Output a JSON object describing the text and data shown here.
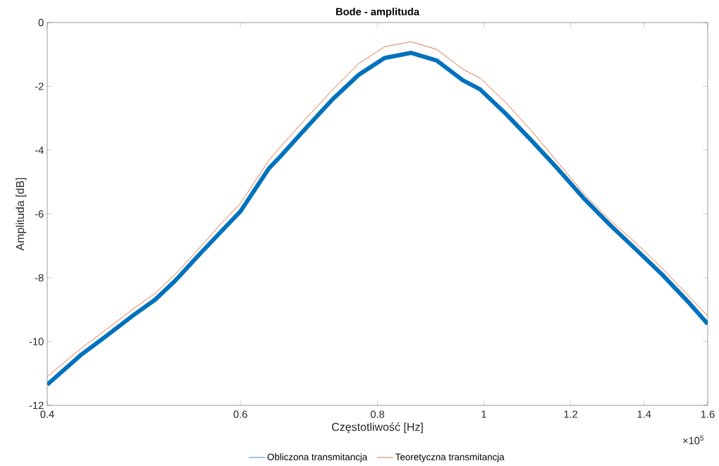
{
  "chart_data": {
    "type": "line",
    "title": "Bode - amplituda",
    "xlabel": "Częstotliwość [Hz]",
    "ylabel": "Amplituda [dB]",
    "annotations": [
      "×10$^{5}$"
    ],
    "log": "x",
    "xlim": [
      0.4,
      1.6
    ],
    "ylim": [
      -12,
      0
    ],
    "xticks": [
      0.4,
      0.6,
      0.8,
      1,
      1.2,
      1.4,
      1.6
    ],
    "yticks": [
      -12,
      -10,
      -8,
      -6,
      -4,
      -2,
      0
    ],
    "legend": "bottom",
    "marker": "none",
    "line_style": "solid",
    "x": [
      0.4,
      0.43,
      0.451,
      0.479,
      0.5015,
      0.523,
      0.5495,
      0.577,
      0.6,
      0.637,
      0.652,
      0.689,
      0.728,
      0.769,
      0.812,
      0.858,
      0.906,
      0.957,
      0.992,
      1.048,
      1.107,
      1.169,
      1.235,
      1.304,
      1.378,
      1.455,
      1.537,
      1.6
    ],
    "series": [
      {
        "name": "Obliczona transmitancja",
        "color": "#0072bd",
        "values": [
          -11.35,
          -10.4,
          -9.87,
          -9.18,
          -8.69,
          -8.1,
          -7.3,
          -6.53,
          -5.92,
          -4.57,
          -4.21,
          -3.3,
          -2.41,
          -1.64,
          -1.11,
          -0.95,
          -1.19,
          -1.81,
          -2.09,
          -2.87,
          -3.72,
          -4.6,
          -5.53,
          -6.35,
          -7.13,
          -7.91,
          -8.77,
          -9.45
        ]
      },
      {
        "name": "Teoretyczna transmitancja",
        "color": "#d95319",
        "values": [
          -11.1,
          -10.2,
          -9.67,
          -8.98,
          -8.49,
          -7.9,
          -7.1,
          -6.28,
          -5.67,
          -4.32,
          -3.91,
          -3.0,
          -2.11,
          -1.29,
          -0.76,
          -0.6,
          -0.84,
          -1.46,
          -1.74,
          -2.52,
          -3.42,
          -4.4,
          -5.38,
          -6.2,
          -6.93,
          -7.71,
          -8.57,
          -9.2
        ]
      }
    ]
  }
}
